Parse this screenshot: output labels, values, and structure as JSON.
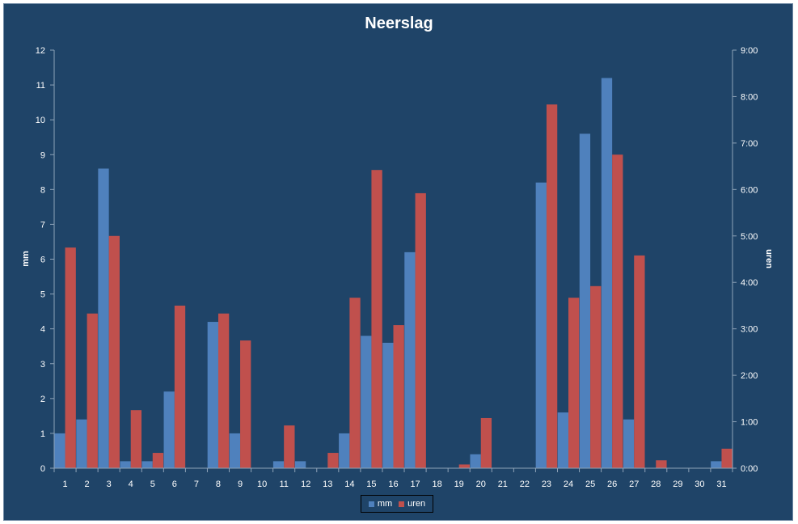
{
  "chart_data": {
    "type": "bar",
    "title": "Neerslag",
    "ylabel": "mm",
    "y2label": "uren",
    "ylim": [
      0,
      12
    ],
    "y2lim_hours": [
      0,
      9
    ],
    "yticks": [
      "0",
      "1",
      "2",
      "3",
      "4",
      "5",
      "6",
      "7",
      "8",
      "9",
      "10",
      "11",
      "12"
    ],
    "y2ticks": [
      "0:00",
      "1:00",
      "2:00",
      "3:00",
      "4:00",
      "5:00",
      "6:00",
      "7:00",
      "8:00",
      "9:00"
    ],
    "categories": [
      "1",
      "2",
      "3",
      "4",
      "5",
      "6",
      "7",
      "8",
      "9",
      "10",
      "11",
      "12",
      "13",
      "14",
      "15",
      "16",
      "17",
      "18",
      "19",
      "20",
      "21",
      "22",
      "23",
      "24",
      "25",
      "26",
      "27",
      "28",
      "29",
      "30",
      "31"
    ],
    "series": [
      {
        "name": "mm",
        "axis": "left",
        "color": "#4f81bd",
        "values": [
          1.0,
          1.4,
          8.6,
          0.2,
          0.2,
          2.2,
          0,
          4.2,
          1.0,
          0,
          0.2,
          0.2,
          0,
          1.0,
          3.8,
          3.6,
          6.2,
          0,
          0,
          0.4,
          0,
          0,
          8.2,
          1.6,
          9.6,
          11.2,
          1.4,
          0,
          0,
          0,
          0.2
        ]
      },
      {
        "name": "uren",
        "axis": "right",
        "color": "#c0504d",
        "values": [
          4.75,
          3.33,
          5.0,
          1.25,
          0.33,
          3.5,
          0,
          3.33,
          2.75,
          0,
          0.92,
          0,
          0.33,
          3.67,
          6.42,
          3.08,
          5.92,
          0,
          0.08,
          1.08,
          0,
          0,
          7.83,
          3.67,
          3.92,
          6.75,
          4.58,
          0.17,
          0,
          0,
          0.42
        ]
      }
    ],
    "grid": false,
    "legend_position": "bottom"
  }
}
